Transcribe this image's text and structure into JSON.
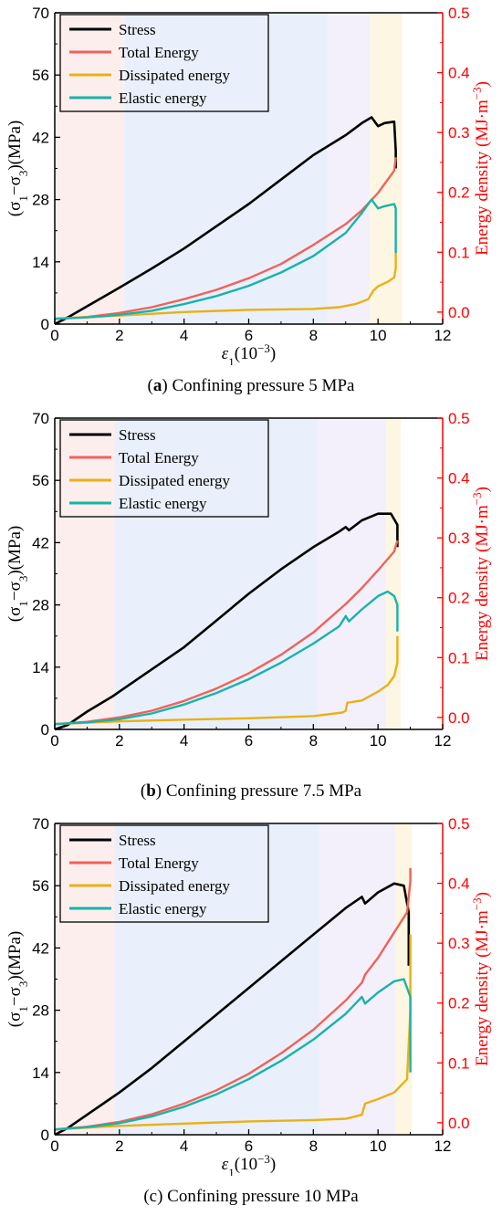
{
  "colors": {
    "stress": "#000000",
    "total": "#f0625a",
    "dissipated": "#e8b116",
    "elastic": "#19b3a8",
    "right_axis": "#ff0000",
    "zone_1": "#fdeeee",
    "zone_2": "#e9f0fb",
    "zone_3": "#f4f0fb",
    "zone_4": "#fdf6e2"
  },
  "chart_data": [
    {
      "type": "line",
      "caption_letter": "a",
      "caption_text": " Confining pressure 5 MPa",
      "xlabel": "ε1(10−3)",
      "ylabel": "(σ1−σ3)(MPa)",
      "ylabel_right": "Energy density (MJ·m−3)",
      "xlim": [
        0,
        12
      ],
      "ylim": [
        0,
        70
      ],
      "ylim_right": [
        -0.02,
        0.5
      ],
      "x_ticks": [
        "0",
        "2",
        "4",
        "6",
        "8",
        "10",
        "12"
      ],
      "y_ticks": [
        "0",
        "14",
        "28",
        "42",
        "56",
        "70"
      ],
      "y_ticks_right": [
        "0.0",
        "0.1",
        "0.2",
        "0.3",
        "0.4",
        "0.5"
      ],
      "stage_boundaries": [
        0,
        2.15,
        8.45,
        9.75,
        10.75
      ],
      "legend": [
        "Stress",
        "Total Energy",
        "Dissipated energy",
        "Elastic energy"
      ],
      "series": [
        {
          "name": "Stress",
          "axis": "left",
          "x": [
            0,
            0.4,
            1,
            2,
            3,
            4,
            5,
            6,
            7,
            8,
            9,
            9.5,
            9.8,
            10,
            10.2,
            10.5,
            10.55,
            10.55
          ],
          "y": [
            0,
            1.5,
            4,
            8.2,
            12.5,
            17,
            22,
            27,
            32.5,
            38,
            42.5,
            45.2,
            46.5,
            44.5,
            45.2,
            45.5,
            39,
            35
          ]
        },
        {
          "name": "Total Energy",
          "axis": "left",
          "x": [
            0,
            1,
            2,
            3,
            4,
            5,
            6,
            7,
            8,
            9,
            9.5,
            10,
            10.5,
            10.55
          ],
          "y": [
            1.2,
            1.6,
            2.5,
            3.8,
            5.6,
            7.7,
            10.3,
            13.5,
            17.8,
            22.5,
            25.6,
            29.5,
            34.5,
            37.5
          ]
        },
        {
          "name": "Dissipated energy",
          "axis": "left",
          "x": [
            0,
            2,
            4,
            6,
            8,
            8.8,
            9.3,
            9.7,
            9.85,
            10,
            10.3,
            10.5,
            10.55,
            10.55
          ],
          "y": [
            1.2,
            1.9,
            2.7,
            3.2,
            3.4,
            3.8,
            4.5,
            5.6,
            7.5,
            8.5,
            9.5,
            10.5,
            12.5,
            16
          ]
        },
        {
          "name": "Elastic energy",
          "axis": "left",
          "x": [
            0,
            1,
            2,
            3,
            4,
            5,
            6,
            7,
            8,
            9,
            9.5,
            9.8,
            10,
            10.2,
            10.5,
            10.55,
            10.55
          ],
          "y": [
            1.2,
            1.5,
            2.1,
            3,
            4.5,
            6.3,
            8.6,
            11.6,
            15.3,
            20.5,
            25,
            28,
            26,
            26.5,
            27,
            26,
            16
          ]
        }
      ]
    },
    {
      "type": "line",
      "caption_letter": "b",
      "caption_text": " Confining pressure 7.5 MPa",
      "xlabel": "",
      "ylabel": "(σ1−σ3)(MPa)",
      "ylabel_right": "Energy density (MJ·m−3)",
      "xlim": [
        0,
        12
      ],
      "ylim": [
        0,
        70
      ],
      "ylim_right": [
        -0.02,
        0.5
      ],
      "x_ticks": [
        "0",
        "2",
        "4",
        "6",
        "8",
        "10",
        "12"
      ],
      "y_ticks": [
        "0",
        "14",
        "28",
        "42",
        "56",
        "70"
      ],
      "y_ticks_right": [
        "0.0",
        "0.1",
        "0.2",
        "0.3",
        "0.4",
        "0.5"
      ],
      "stage_boundaries": [
        0,
        1.85,
        8.15,
        10.25,
        10.7
      ],
      "legend": [
        "Stress",
        "Total Energy",
        "Dissipated energy",
        "Elastic energy"
      ],
      "series": [
        {
          "name": "Stress",
          "axis": "left",
          "x": [
            0,
            0.4,
            1,
            1.8,
            2,
            3,
            4,
            5,
            6,
            7,
            8,
            8.8,
            9,
            9.1,
            9.5,
            10,
            10.4,
            10.6,
            10.6
          ],
          "y": [
            0,
            1,
            4,
            7.5,
            8.5,
            13.5,
            18.5,
            24.5,
            30.5,
            36,
            41,
            44.5,
            45.5,
            44.8,
            47,
            48.5,
            48.5,
            46,
            41
          ]
        },
        {
          "name": "Total Energy",
          "axis": "left",
          "x": [
            0,
            1,
            2,
            3,
            4,
            5,
            6,
            7,
            8,
            9,
            9.5,
            10,
            10.5,
            10.6
          ],
          "y": [
            1.2,
            1.7,
            2.7,
            4.2,
            6.4,
            9.2,
            12.6,
            16.8,
            21.8,
            28.2,
            31.8,
            35.8,
            40,
            42.5
          ]
        },
        {
          "name": "Dissipated energy",
          "axis": "left",
          "x": [
            0,
            2,
            4,
            6,
            8,
            8.9,
            9,
            9.05,
            9.5,
            10,
            10.3,
            10.5,
            10.6,
            10.6
          ],
          "y": [
            1.2,
            1.8,
            2.2,
            2.5,
            3,
            3.8,
            4.2,
            6,
            6.5,
            8.5,
            10,
            12,
            15,
            21
          ]
        },
        {
          "name": "Elastic energy",
          "axis": "left",
          "x": [
            0,
            1,
            2,
            3,
            4,
            5,
            6,
            7,
            8,
            8.8,
            9,
            9.1,
            9.5,
            10,
            10.3,
            10.5,
            10.6,
            10.6
          ],
          "y": [
            1.2,
            1.6,
            2.3,
            3.6,
            5.6,
            8.2,
            11.3,
            15,
            19.3,
            23.2,
            25.5,
            24.3,
            27,
            30,
            31,
            30,
            28,
            22
          ]
        }
      ]
    },
    {
      "type": "line",
      "caption_letter": "",
      "caption_text": "(c) Confining pressure 10 MPa",
      "xlabel": "ε1(10−3)",
      "ylabel": "(σ1−σ3)(MPa)",
      "ylabel_right": "Energy density (MJ·m−3)",
      "xlim": [
        0,
        12
      ],
      "ylim": [
        0,
        70
      ],
      "ylim_right": [
        -0.02,
        0.5
      ],
      "x_ticks": [
        "0",
        "2",
        "4",
        "6",
        "8",
        "10",
        "12"
      ],
      "y_ticks": [
        "0",
        "14",
        "28",
        "42",
        "56",
        "70"
      ],
      "y_ticks_right": [
        "0.0",
        "0.1",
        "0.2",
        "0.3",
        "0.4",
        "0.5"
      ],
      "stage_boundaries": [
        0,
        1.85,
        8.2,
        10.55,
        11.05
      ],
      "legend": [
        "Stress",
        "Total Energy",
        "Dissipated energy",
        "Elastic energy"
      ],
      "series": [
        {
          "name": "Stress",
          "axis": "left",
          "x": [
            0,
            0.4,
            1,
            2,
            3,
            4,
            5,
            6,
            7,
            8,
            9,
            9.5,
            9.6,
            10,
            10.5,
            10.8,
            10.95,
            10.95
          ],
          "y": [
            0,
            1.5,
            4.5,
            9.5,
            15,
            21,
            27,
            33,
            39,
            45,
            51,
            53.5,
            52,
            54.5,
            56.5,
            56,
            50,
            38
          ]
        },
        {
          "name": "Total Energy",
          "axis": "left",
          "x": [
            0,
            1,
            2,
            3,
            4,
            5,
            6,
            7,
            8,
            9,
            9.5,
            9.6,
            10,
            10.5,
            10.9,
            11,
            11
          ],
          "y": [
            1.2,
            1.8,
            2.9,
            4.6,
            7,
            10,
            13.7,
            18.3,
            23.6,
            30.2,
            34.2,
            36,
            39.8,
            45.5,
            50,
            57,
            60
          ]
        },
        {
          "name": "Dissipated energy",
          "axis": "left",
          "x": [
            0,
            2,
            4,
            6,
            8,
            9,
            9.5,
            9.6,
            10,
            10.5,
            10.9,
            11,
            11
          ],
          "y": [
            1.2,
            2,
            2.5,
            3,
            3.3,
            3.6,
            4.5,
            7,
            8,
            9.5,
            12.5,
            28,
            45
          ]
        },
        {
          "name": "Elastic energy",
          "axis": "left",
          "x": [
            0,
            1,
            2,
            3,
            4,
            5,
            6,
            7,
            8,
            9,
            9.5,
            9.6,
            10,
            10.5,
            10.8,
            11,
            11
          ],
          "y": [
            1.2,
            1.7,
            2.6,
            4.1,
            6.3,
            9.1,
            12.5,
            16.6,
            21.4,
            27.2,
            31,
            29.5,
            32,
            34.5,
            35,
            31,
            14
          ]
        }
      ]
    }
  ]
}
